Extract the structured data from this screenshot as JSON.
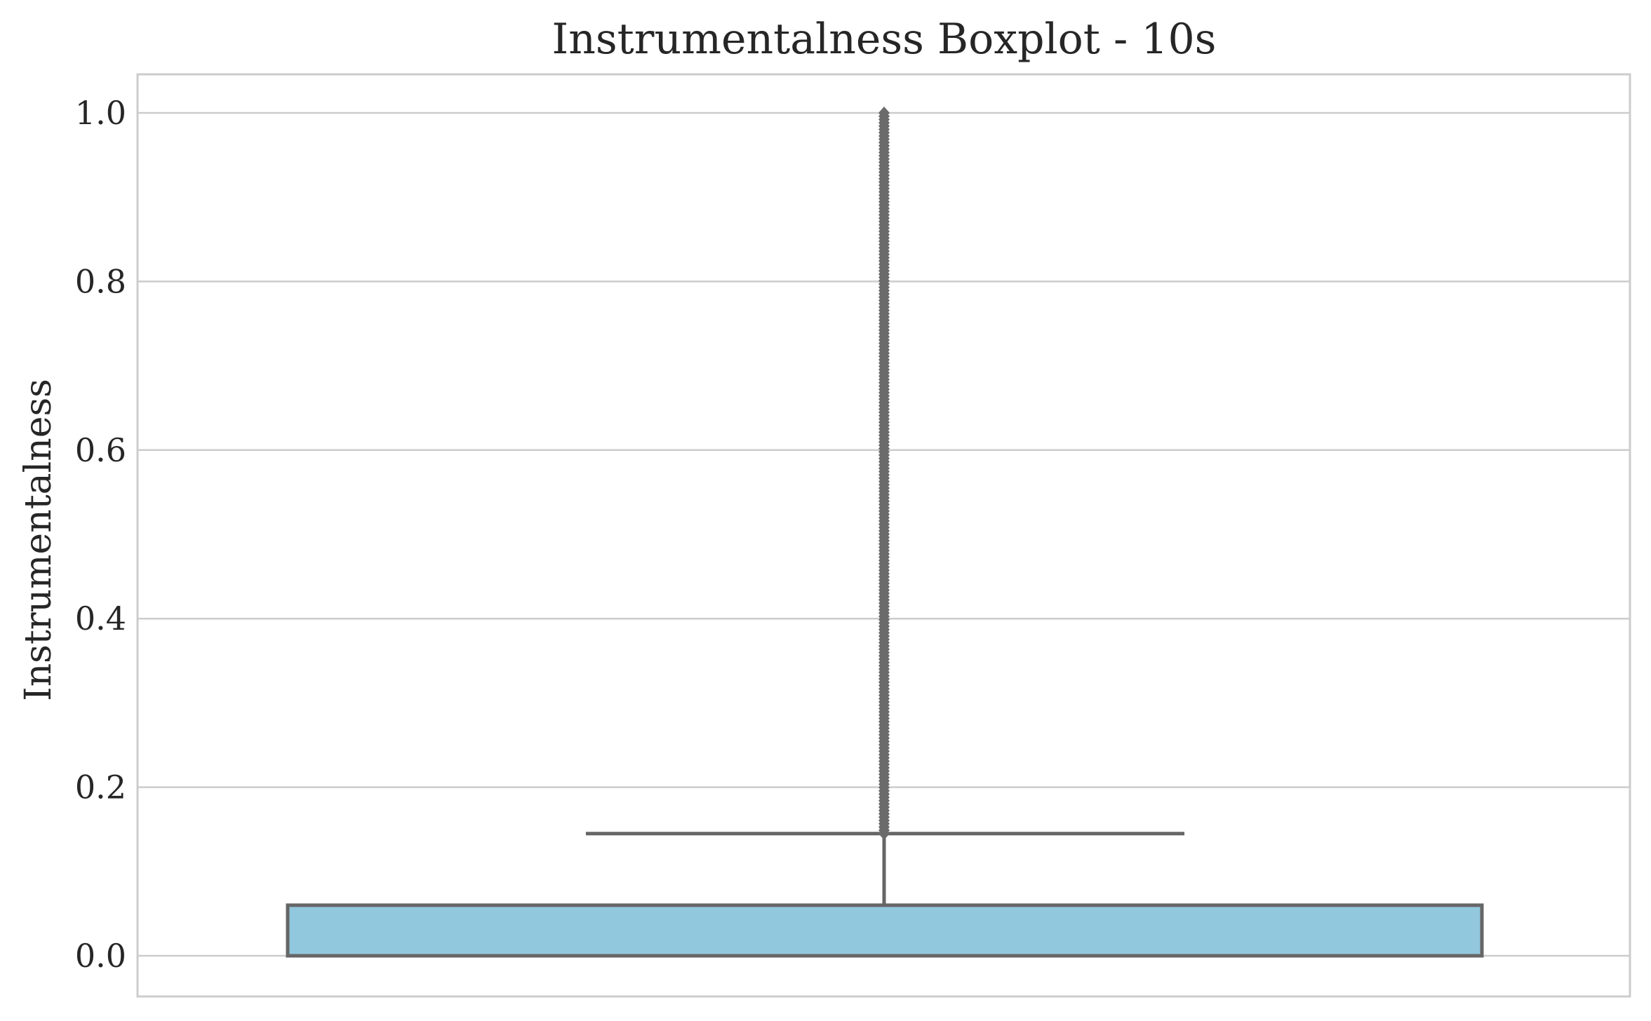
{
  "chart_data": {
    "type": "boxplot",
    "title": "Instrumentalness Boxplot - 10s",
    "xlabel": "",
    "ylabel": "Instrumentalness",
    "ylim": [
      -0.048,
      1.046
    ],
    "yticks": [
      {
        "value": 0.0,
        "label": "0.0"
      },
      {
        "value": 0.2,
        "label": "0.2"
      },
      {
        "value": 0.4,
        "label": "0.4"
      },
      {
        "value": 0.6,
        "label": "0.6"
      },
      {
        "value": 0.8,
        "label": "0.8"
      },
      {
        "value": 1.0,
        "label": "1.0"
      }
    ],
    "grid": "horizontal",
    "box": {
      "min": 0.0,
      "q1": 0.0,
      "median": 0.0,
      "q3": 0.06,
      "whisker_low": 0.0,
      "whisker_high": 0.145
    },
    "outliers_range": [
      0.145,
      1.0
    ],
    "colors": {
      "box_fill": "#92c8de",
      "box_edge": "#666666",
      "grid": "#cccccc",
      "spine": "#cccccc",
      "outlier": "#6b6b6b",
      "text": "#262626"
    }
  }
}
